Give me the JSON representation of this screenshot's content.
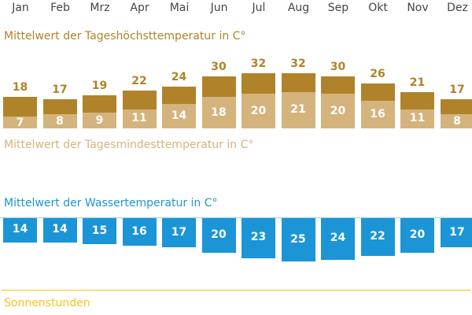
{
  "months": [
    "Jan",
    "Feb",
    "Mrz",
    "Apr",
    "Mai",
    "Jun",
    "Jul",
    "Aug",
    "Sep",
    "Okt",
    "Nov",
    "Dez"
  ],
  "titles": {
    "max": "Mittelwert der Tageshöchsttemperatur in C°",
    "min": "Mittelwert der Tagesmindesttemperatur in C°",
    "water": "Mittelwert der Wassertemperatur in C°",
    "sun": "Sonnenstunden"
  },
  "colors": {
    "max": "#b0832a",
    "min": "#d4b37c",
    "water": "#1b95d6",
    "sun": "#f9c31b"
  },
  "chart_data": {
    "type": "bar",
    "categories": [
      "Jan",
      "Feb",
      "Mrz",
      "Apr",
      "Mai",
      "Jun",
      "Jul",
      "Aug",
      "Sep",
      "Okt",
      "Nov",
      "Dez"
    ],
    "series": [
      {
        "name": "Mittelwert der Tageshöchsttemperatur in C°",
        "values": [
          18,
          17,
          19,
          22,
          24,
          30,
          32,
          32,
          30,
          26,
          21,
          17
        ]
      },
      {
        "name": "Mittelwert der Tagesmindesttemperatur in C°",
        "values": [
          7,
          8,
          9,
          11,
          14,
          18,
          20,
          21,
          20,
          16,
          11,
          8
        ]
      },
      {
        "name": "Mittelwert der Wassertemperatur in C°",
        "values": [
          14,
          14,
          15,
          16,
          17,
          20,
          23,
          25,
          24,
          22,
          20,
          17
        ]
      }
    ]
  }
}
